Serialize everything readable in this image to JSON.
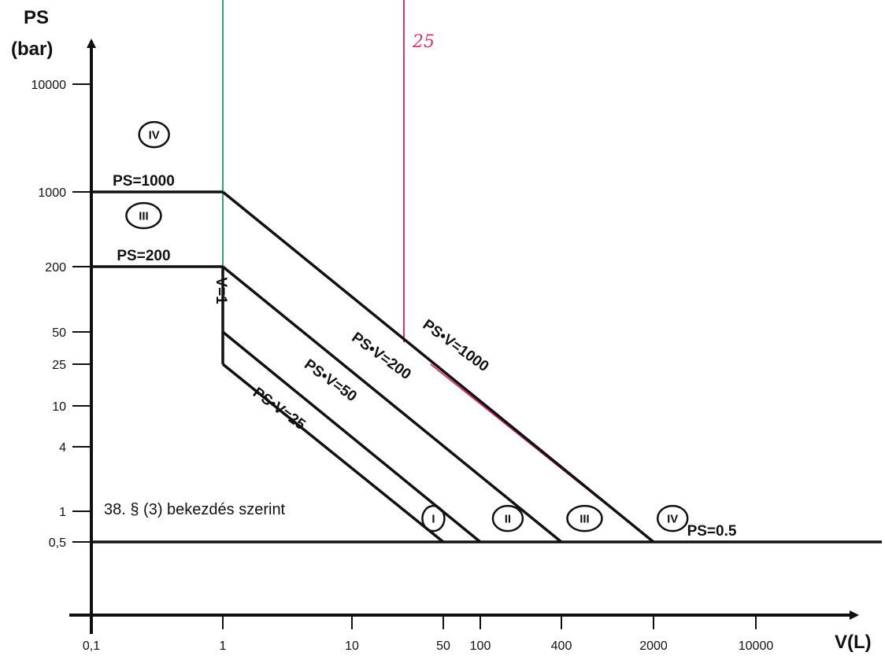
{
  "chart_data": {
    "type": "line",
    "x_scale": "log",
    "y_scale": "log",
    "xlabel": "V(L)",
    "ylabel_line1": "PS",
    "ylabel_line2": "(bar)",
    "x_ticks": [
      {
        "value": 0.1,
        "label": "0,1"
      },
      {
        "value": 1,
        "label": "1"
      },
      {
        "value": 10,
        "label": "10"
      },
      {
        "value": 50,
        "label": "50"
      },
      {
        "value": 100,
        "label": "100"
      },
      {
        "value": 400,
        "label": "400"
      },
      {
        "value": 2000,
        "label": "2000"
      },
      {
        "value": 10000,
        "label": "10000"
      }
    ],
    "y_ticks": [
      {
        "value": 0.5,
        "label": "0,5"
      },
      {
        "value": 1,
        "label": "1"
      },
      {
        "value": 4,
        "label": "4"
      },
      {
        "value": 10,
        "label": "10"
      },
      {
        "value": 25,
        "label": "25"
      },
      {
        "value": 50,
        "label": "50"
      },
      {
        "value": 200,
        "label": "200"
      },
      {
        "value": 1000,
        "label": "1000"
      },
      {
        "value": 10000,
        "label": "10000"
      }
    ],
    "series": [
      {
        "name": "PS=1000",
        "points": [
          [
            0.1,
            1000
          ],
          [
            1,
            1000
          ]
        ],
        "color": "#111111"
      },
      {
        "name": "PS=200",
        "points": [
          [
            0.1,
            200
          ],
          [
            1,
            200
          ]
        ],
        "color": "#111111"
      },
      {
        "name": "V=1",
        "points": [
          [
            1,
            25
          ],
          [
            1,
            200
          ]
        ],
        "color": "#111111"
      },
      {
        "name": "PS•V=1000",
        "points": [
          [
            1,
            1000
          ],
          [
            2000,
            0.5
          ]
        ],
        "color": "#111111"
      },
      {
        "name": "PS•V=200",
        "points": [
          [
            1,
            200
          ],
          [
            400,
            0.5
          ]
        ],
        "color": "#111111"
      },
      {
        "name": "PS•V=50",
        "points": [
          [
            1,
            50
          ],
          [
            100,
            0.5
          ]
        ],
        "color": "#111111"
      },
      {
        "name": "PS•V=25",
        "points": [
          [
            1,
            25
          ],
          [
            50,
            0.5
          ]
        ],
        "color": "#111111"
      },
      {
        "name": "PS=0.5",
        "points": [
          [
            0.1,
            0.5
          ],
          [
            20000,
            0.5
          ]
        ],
        "color": "#111111"
      }
    ],
    "line_labels": [
      {
        "text": "PS=1000",
        "x": 0.25,
        "y": 1000,
        "angle": 0
      },
      {
        "text": "PS=200",
        "x": 0.25,
        "y": 200,
        "angle": 0
      },
      {
        "text": "V=1",
        "x": 1,
        "y": 120,
        "angle": 90
      },
      {
        "text": "PS•V=1000",
        "x": 60,
        "y": 30,
        "angle": 36
      },
      {
        "text": "PS•V=200",
        "x": 16,
        "y": 24,
        "angle": 36
      },
      {
        "text": "PS•V=50",
        "x": 6.5,
        "y": 14,
        "angle": 36
      },
      {
        "text": "PS•V=25",
        "x": 2.6,
        "y": 7.5,
        "angle": 36
      },
      {
        "text": "PS=0.5",
        "x": 5000,
        "y": 0.5,
        "angle": 0
      }
    ],
    "regions": [
      {
        "text": "IV",
        "x": 0.3,
        "y": 3400
      },
      {
        "text": "III",
        "x": 0.25,
        "y": 600
      },
      {
        "text": "I",
        "x": 42,
        "y": 0.85
      },
      {
        "text": "II",
        "x": 160,
        "y": 0.85
      },
      {
        "text": "III",
        "x": 600,
        "y": 0.85
      },
      {
        "text": "IV",
        "x": 2700,
        "y": 0.85
      }
    ],
    "annotation": {
      "text": "38. § (3) bekezdés szerint",
      "x": 0.14,
      "y": 1.1
    },
    "overlays": [
      {
        "label": "",
        "color": "#2aa876",
        "points": [
          [
            1,
            30000
          ],
          [
            1,
            200
          ],
          [
            400,
            0.5
          ]
        ]
      },
      {
        "label": "25",
        "color": "#d6336c",
        "points": [
          [
            25,
            30000
          ],
          [
            25,
            40
          ]
        ]
      },
      {
        "label": "",
        "color": "#d6336c",
        "points": [
          [
            40,
            25
          ],
          [
            2000,
            0.5
          ],
          [
            20000,
            0.5
          ]
        ]
      }
    ],
    "handwritten_note": {
      "text": "25",
      "x": 28,
      "y": 22000
    },
    "grid": false
  }
}
